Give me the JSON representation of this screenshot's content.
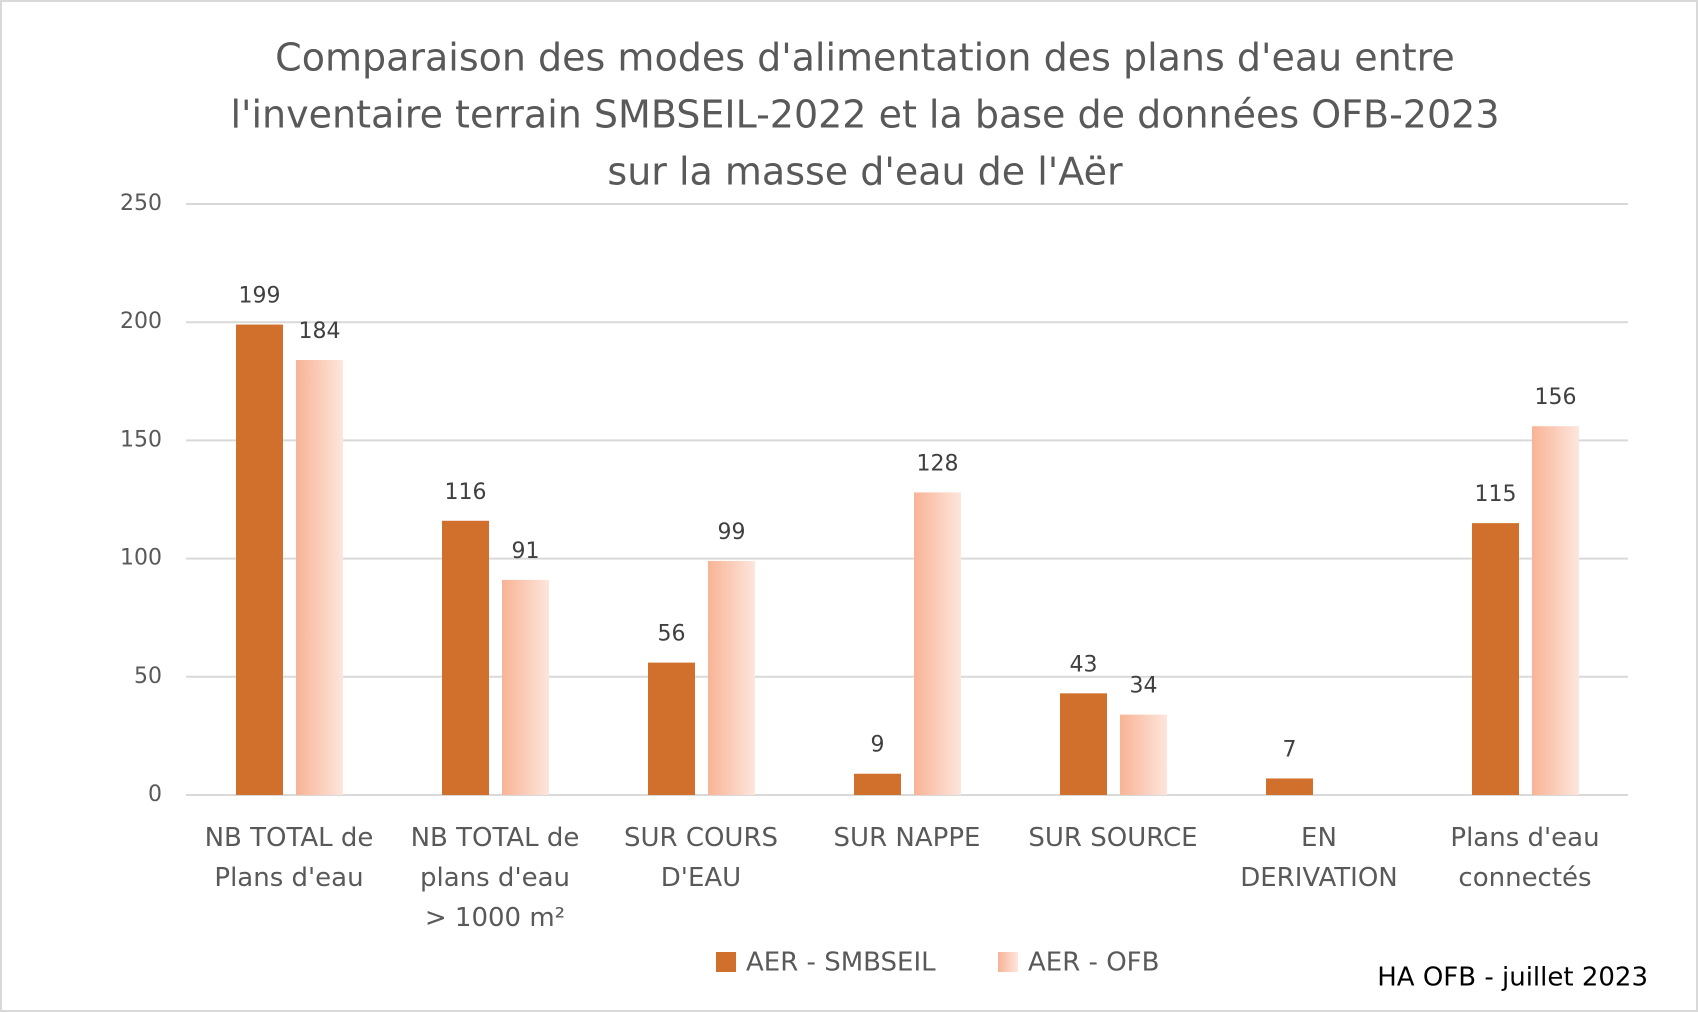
{
  "chart_data": {
    "type": "bar",
    "title": [
      "Comparaison des modes d'alimentation des plans d'eau entre",
      "l'inventaire terrain SMBSEIL-2022 et la base de données OFB-2023",
      "sur  la masse d'eau de l'Aër"
    ],
    "categories": [
      "NB TOTAL de Plans d'eau",
      "NB TOTAL de plans d'eau > 1000 m²",
      "SUR COURS D'EAU",
      "SUR NAPPE",
      "SUR SOURCE",
      "EN DERIVATION",
      "Plans d'eau connectés"
    ],
    "series": [
      {
        "name": "AER - SMBSEIL",
        "color": "#d0702c",
        "values": [
          199,
          116,
          56,
          9,
          43,
          7,
          115
        ]
      },
      {
        "name": "AER - OFB",
        "color": "#f8b396",
        "values": [
          184,
          91,
          99,
          128,
          34,
          null,
          156
        ]
      }
    ],
    "ylim": [
      0,
      250
    ],
    "yticks": [
      0,
      50,
      100,
      150,
      200,
      250
    ],
    "grid": true,
    "legend": "bottom",
    "footnote": "HA OFB - juillet 2023"
  }
}
